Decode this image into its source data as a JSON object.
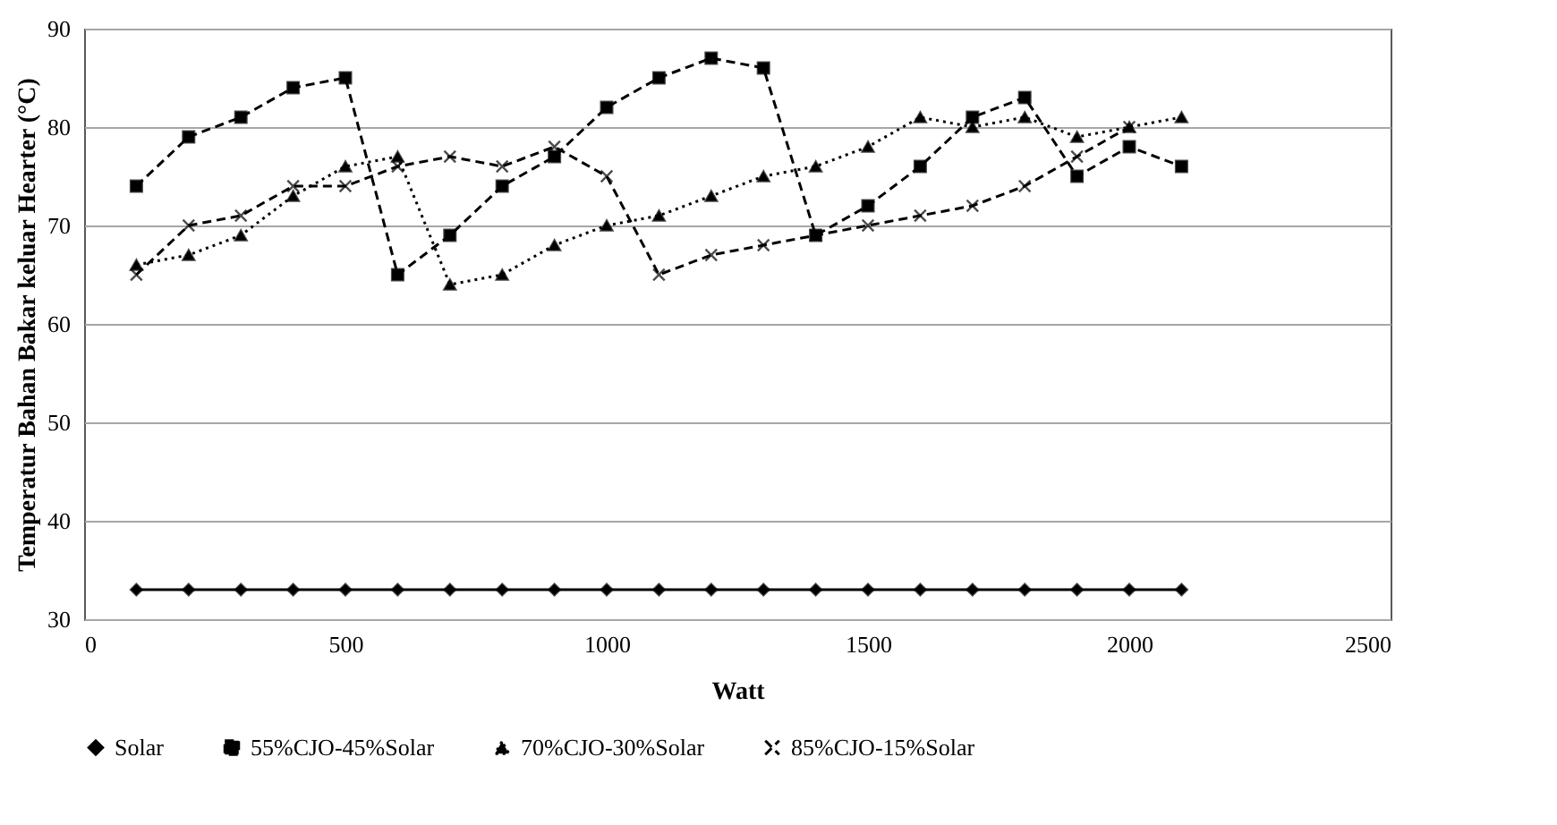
{
  "chart_data": {
    "type": "line",
    "xlabel": "Watt",
    "ylabel": "Temperatur Bahan Bakar keluar Hearter (°C)",
    "x": [
      100,
      200,
      300,
      400,
      500,
      600,
      700,
      800,
      900,
      1000,
      1100,
      1200,
      1300,
      1400,
      1500,
      1600,
      1700,
      1800,
      1900,
      2000,
      2100
    ],
    "series": [
      {
        "name": "Solar",
        "color": "#000000",
        "marker": "diamond",
        "line_style": "solid",
        "values": [
          33,
          33,
          33,
          33,
          33,
          33,
          33,
          33,
          33,
          33,
          33,
          33,
          33,
          33,
          33,
          33,
          33,
          33,
          33,
          33,
          33
        ]
      },
      {
        "name": "55%CJO-45%Solar",
        "color": "#000000",
        "marker": "square",
        "line_style": "dashed",
        "values": [
          74,
          79,
          81,
          84,
          85,
          65,
          69,
          74,
          77,
          82,
          85,
          87,
          86,
          69,
          72,
          76,
          81,
          83,
          75,
          78,
          76
        ]
      },
      {
        "name": "70%CJO-30%Solar",
        "color": "#000000",
        "marker": "triangle",
        "line_style": "dotted",
        "values": [
          66,
          67,
          69,
          73,
          76,
          77,
          64,
          65,
          68,
          70,
          71,
          73,
          75,
          76,
          78,
          81,
          80,
          81,
          79,
          80,
          81
        ]
      },
      {
        "name": "85%CJO-15%Solar",
        "color": "#000000",
        "marker": "cross",
        "line_style": "dashed",
        "values": [
          65,
          70,
          71,
          74,
          74,
          76,
          77,
          76,
          78,
          75,
          65,
          67,
          68,
          69,
          70,
          71,
          72,
          74,
          77,
          80,
          null
        ]
      }
    ],
    "xlim": [
      0,
      2500
    ],
    "xticks": [
      0,
      500,
      1000,
      1500,
      2000,
      2500
    ],
    "ylim": [
      30,
      90
    ],
    "yticks": [
      30,
      40,
      50,
      60,
      70,
      80,
      90
    ],
    "grid": "y",
    "legend": "bottom"
  }
}
